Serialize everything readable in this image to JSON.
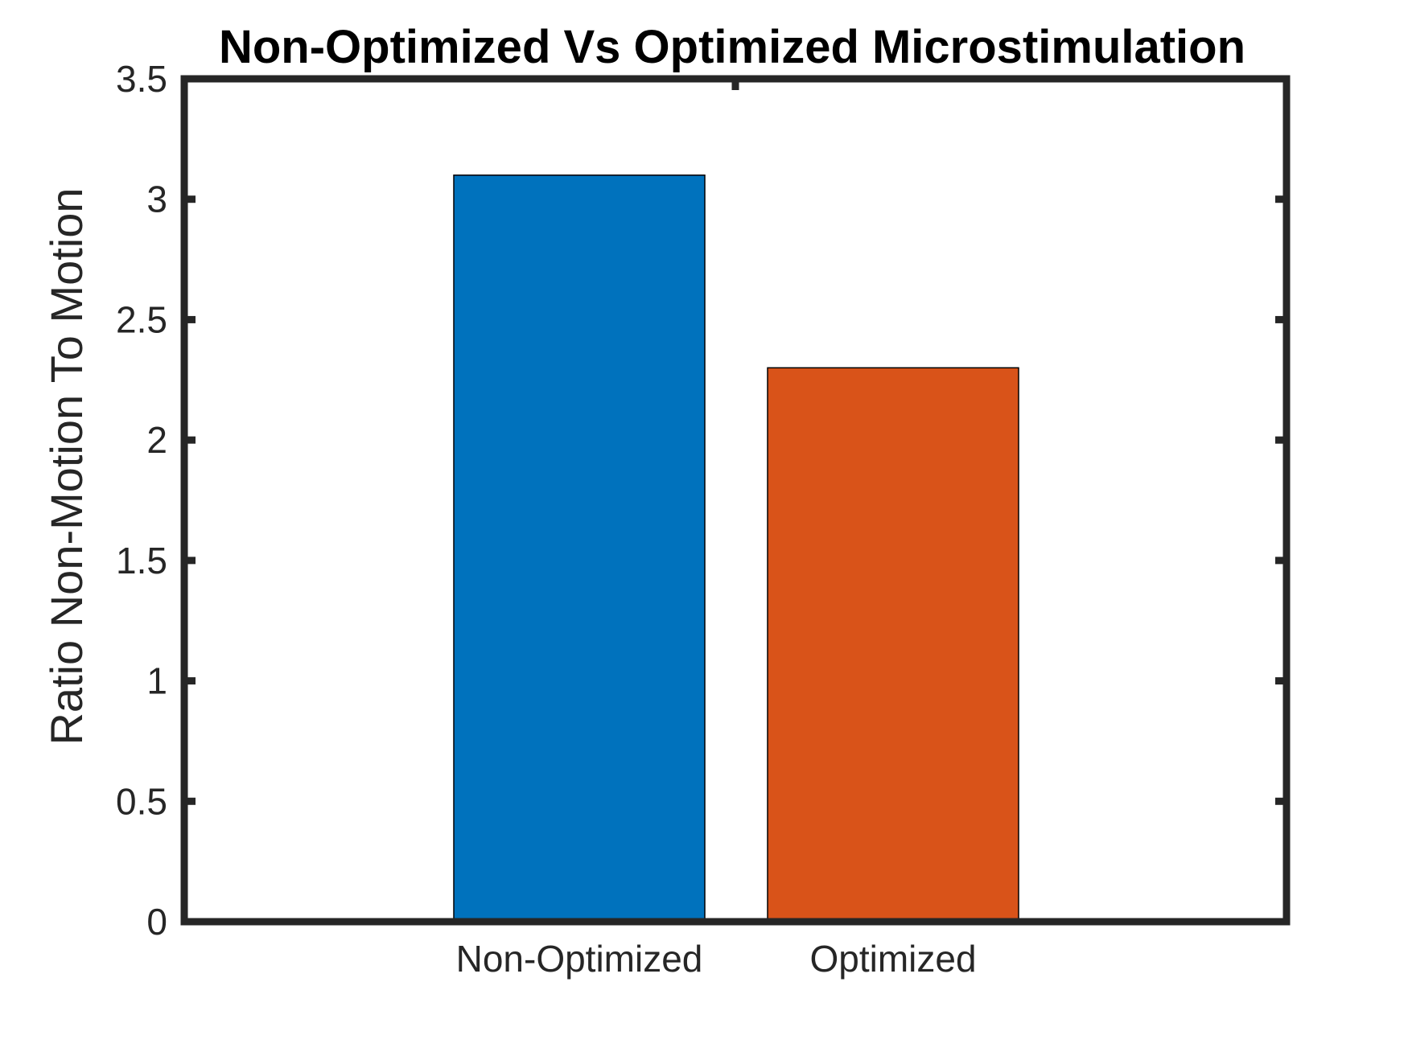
{
  "chart_data": {
    "type": "bar",
    "title": "Non-Optimized Vs Optimized Microstimulation",
    "xlabel": "",
    "ylabel": "Ratio Non-Motion To Motion",
    "categories": [
      "Non-Optimized",
      "Optimized"
    ],
    "values": [
      3.1,
      2.3
    ],
    "bar_colors": [
      "#0072BD",
      "#D95319"
    ],
    "ylim": [
      0,
      3.5
    ],
    "yticks": [
      0,
      0.5,
      1,
      1.5,
      2,
      2.5,
      3,
      3.5
    ],
    "ytick_labels": [
      "0",
      "0.5",
      "1",
      "1.5",
      "2",
      "2.5",
      "3",
      "3.5"
    ],
    "axis_color": "#262626",
    "grid": false,
    "legend": "none"
  }
}
